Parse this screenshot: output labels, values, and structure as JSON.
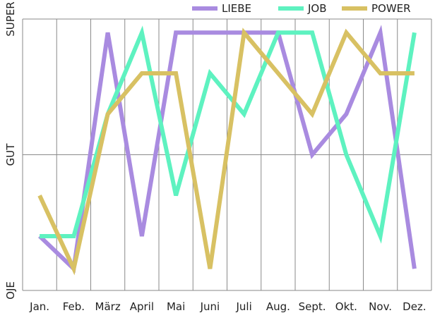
{
  "chart_data": {
    "type": "line",
    "categories": [
      "Jan.",
      "Feb.",
      "März",
      "April",
      "Mai",
      "Juni",
      "Juli",
      "Aug.",
      "Sept.",
      "Okt.",
      "Nov.",
      "Dez."
    ],
    "y_ticks": [
      {
        "label": "OJE",
        "value": 0
      },
      {
        "label": "GUT",
        "value": 5
      },
      {
        "label": "SUPER",
        "value": 10
      }
    ],
    "ylim": [
      0,
      10
    ],
    "grid": true,
    "legend_position": "top-right",
    "series": [
      {
        "name": "LIEBE",
        "color": "#a98be0",
        "values": [
          2,
          0.8,
          9.5,
          2,
          9.5,
          9.5,
          9.5,
          9.5,
          5,
          6.5,
          9.5,
          0.8
        ]
      },
      {
        "name": "JOB",
        "color": "#5ef2c0",
        "values": [
          2,
          2,
          6.5,
          9.5,
          3.5,
          8,
          6.5,
          9.5,
          9.5,
          5,
          2,
          9.5
        ]
      },
      {
        "name": "POWER",
        "color": "#d8c163",
        "values": [
          3.5,
          0.8,
          6.5,
          8,
          8,
          0.8,
          9.5,
          8,
          6.5,
          9.5,
          8,
          8
        ]
      }
    ]
  }
}
